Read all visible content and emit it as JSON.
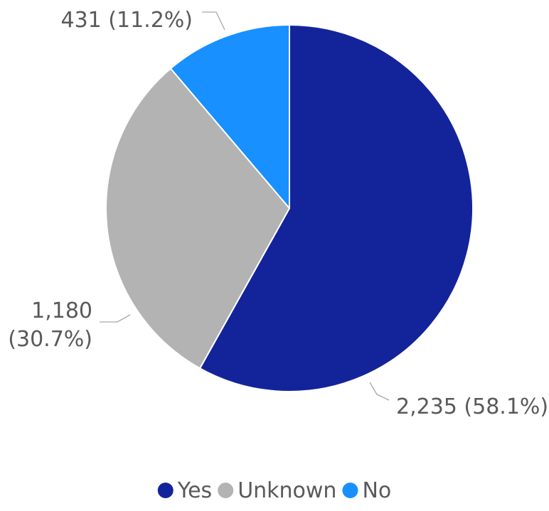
{
  "chart_data": {
    "type": "pie",
    "categories": [
      "Yes",
      "Unknown",
      "No"
    ],
    "values": [
      2235,
      1180,
      431
    ],
    "percents": [
      "58.1%",
      "30.7%",
      "11.2%"
    ],
    "data_labels": [
      [
        "2,235 (58.1%)"
      ],
      [
        "1,180",
        "(30.7%)"
      ],
      [
        "431 (11.2%)"
      ]
    ],
    "colors": [
      "#13249a",
      "#b3b3b3",
      "#1890ff"
    ],
    "start_angle_deg": 0,
    "direction": "clockwise",
    "legend": {
      "placement": "bottom-center",
      "entries": [
        "Yes",
        "Unknown",
        "No"
      ]
    },
    "title": ""
  }
}
